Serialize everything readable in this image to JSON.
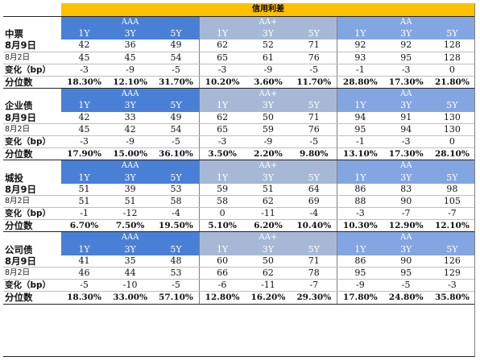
{
  "title": "信用利差",
  "ratings": [
    "AAA",
    "AA+",
    "AA"
  ],
  "tenors": [
    "1Y",
    "3Y",
    "5Y"
  ],
  "row_labels": {
    "d1": "8月9日",
    "d2": "8月2日",
    "chg": "变化（bp）",
    "pct": "分位数"
  },
  "colors": {
    "header_aaa": "#4a7fd6",
    "header_aaplus": "#a6b8d6",
    "header_aa": "#83a6e2",
    "title_bar": "#ffc000"
  },
  "sections": [
    {
      "name": "中票",
      "d1": [
        "42",
        "36",
        "49",
        "62",
        "52",
        "71",
        "92",
        "92",
        "128"
      ],
      "d2": [
        "45",
        "45",
        "54",
        "65",
        "61",
        "76",
        "93",
        "95",
        "128"
      ],
      "chg": [
        "-3",
        "-9",
        "-5",
        "-3",
        "-9",
        "-5",
        "-1",
        "-3",
        "0"
      ],
      "pct": [
        "18.30%",
        "12.10%",
        "31.70%",
        "10.20%",
        "3.60%",
        "11.70%",
        "28.80%",
        "17.30%",
        "21.80%"
      ]
    },
    {
      "name": "企业债",
      "d1": [
        "42",
        "33",
        "49",
        "62",
        "50",
        "71",
        "94",
        "91",
        "130"
      ],
      "d2": [
        "45",
        "42",
        "54",
        "65",
        "59",
        "76",
        "95",
        "94",
        "130"
      ],
      "chg": [
        "-3",
        "-9",
        "-5",
        "-3",
        "-9",
        "-5",
        "-1",
        "-3",
        "0"
      ],
      "pct": [
        "17.90%",
        "15.00%",
        "36.10%",
        "3.50%",
        "2.20%",
        "9.80%",
        "13.10%",
        "17.30%",
        "28.10%"
      ]
    },
    {
      "name": "城投",
      "d1": [
        "51",
        "39",
        "53",
        "59",
        "51",
        "64",
        "86",
        "83",
        "98"
      ],
      "d2": [
        "51",
        "51",
        "58",
        "58",
        "62",
        "69",
        "88",
        "90",
        "105"
      ],
      "chg": [
        "-1",
        "-12",
        "-4",
        "0",
        "-11",
        "-4",
        "-3",
        "-7",
        "-7"
      ],
      "pct": [
        "6.70%",
        "7.50%",
        "19.50%",
        "5.10%",
        "6.20%",
        "10.40%",
        "10.30%",
        "12.90%",
        "12.10%"
      ]
    },
    {
      "name": "公司债",
      "d1": [
        "41",
        "35",
        "48",
        "60",
        "50",
        "71",
        "86",
        "90",
        "126"
      ],
      "d2": [
        "46",
        "44",
        "53",
        "66",
        "62",
        "78",
        "95",
        "95",
        "129"
      ],
      "chg": [
        "-5",
        "-10",
        "-5",
        "-6",
        "-11",
        "-7",
        "-9",
        "-5",
        "-3"
      ],
      "pct": [
        "18.30%",
        "33.00%",
        "57.10%",
        "12.80%",
        "16.20%",
        "29.30%",
        "17.80%",
        "24.80%",
        "35.80%"
      ]
    }
  ]
}
